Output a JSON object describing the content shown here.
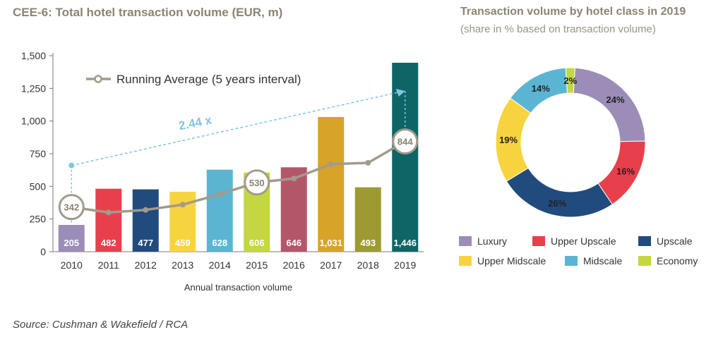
{
  "bar_chart": {
    "title": "CEE-6: Total hotel transaction volume (EUR, m)",
    "legend_label": "Running Average (5 years interval)",
    "growth_label": "2.44 x",
    "xlabel": "Annual transaction volume",
    "value_labels": [
      "205",
      "482",
      "477",
      "459",
      "628",
      "606",
      "646",
      "1,031",
      "493",
      "1,446"
    ],
    "avg_labels": [
      "342",
      "530",
      "844"
    ],
    "colors": {
      "bars": [
        "#9b8db7",
        "#e8404b",
        "#214b7d",
        "#f7d43f",
        "#5bb5d2",
        "#c4d641",
        "#b4566a",
        "#d8a329",
        "#9e9a32",
        "#0f6466"
      ],
      "average_line": "#a39a8c",
      "growth_arrow": "#7fc6e6"
    }
  },
  "donut": {
    "title": "Transaction volume by hotel class in 2019",
    "subtitle": "(share in % based on transaction volume)",
    "labels": [
      "24%",
      "16%",
      "26%",
      "19%",
      "14%",
      "2%"
    ]
  },
  "source": "Source: Cushman & Wakefield / RCA",
  "chart_data": [
    {
      "type": "bar",
      "title": "CEE-6: Total hotel transaction volume (EUR, m)",
      "xlabel": "Annual transaction volume",
      "ylabel": "",
      "categories": [
        "2010",
        "2011",
        "2012",
        "2013",
        "2014",
        "2015",
        "2016",
        "2017",
        "2018",
        "2019"
      ],
      "ylim": [
        0,
        1500
      ],
      "yticks": [
        "0",
        "250",
        "500",
        "750",
        "1,000",
        "1,250",
        "1,500"
      ],
      "ytick_values": [
        0,
        250,
        500,
        750,
        1000,
        1250,
        1500
      ],
      "series": [
        {
          "name": "",
          "type": "bar",
          "values": [
            205,
            482,
            477,
            459,
            628,
            606,
            646,
            1031,
            493,
            1446
          ]
        },
        {
          "name": "Running Average (5 years interval)",
          "type": "line",
          "values": [
            342,
            300,
            320,
            360,
            440,
            530,
            560,
            670,
            680,
            844
          ]
        }
      ],
      "annotations": [
        {
          "text": "2.44 x",
          "from": [
            "2010",
            660
          ],
          "to": [
            "2019",
            1230
          ]
        }
      ],
      "grid": false
    },
    {
      "type": "pie",
      "title": "Transaction volume by hotel class in 2019",
      "subtitle": "(share in % based on transaction volume)",
      "labels": [
        "Luxury",
        "Upper Upscale",
        "Upscale",
        "Upper Midscale",
        "Midscale",
        "Economy"
      ],
      "values": [
        24,
        16,
        26,
        19,
        14,
        2
      ],
      "colors": [
        "#9b8db7",
        "#e8404b",
        "#214b7d",
        "#f7d43f",
        "#5bb5d2",
        "#c4d641"
      ],
      "legend_placement": "bottom"
    }
  ]
}
